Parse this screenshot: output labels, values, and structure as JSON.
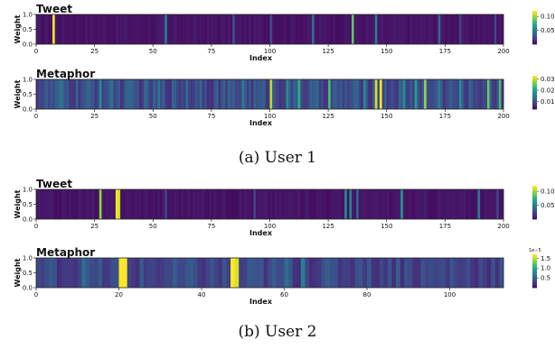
{
  "captions": [
    "(a) User 1",
    "(b) User 2"
  ],
  "colormap": "viridis",
  "colormap_stops": [
    "#440154",
    "#482878",
    "#3e4989",
    "#31688e",
    "#26828e",
    "#1f9e89",
    "#35b779",
    "#6ece58",
    "#b5de2b",
    "#fde725"
  ],
  "chart_data": [
    {
      "type": "heatmap",
      "title": "Tweet",
      "xlabel": "Index",
      "ylabel": "Weight",
      "xlim": [
        0,
        200
      ],
      "ylim": [
        0,
        1
      ],
      "xticks": [
        "0",
        "25",
        "50",
        "75",
        "100",
        "125",
        "150",
        "175",
        "200"
      ],
      "yticks": [
        "0.0",
        "0.5",
        "1.0"
      ],
      "colorbar": {
        "ticks": [
          "0.05",
          "0.10"
        ],
        "tick_values": [
          0.05,
          0.1
        ],
        "range": [
          0.0,
          0.12
        ],
        "offset_label": ""
      },
      "n": 200,
      "base": 0.004,
      "noise": 0.005,
      "highlights": [
        [
          7,
          0.12
        ],
        [
          55,
          0.05
        ],
        [
          84,
          0.03
        ],
        [
          100,
          0.028
        ],
        [
          118,
          0.045
        ],
        [
          135,
          0.09
        ],
        [
          145,
          0.05
        ],
        [
          172,
          0.04
        ],
        [
          181,
          0.025
        ],
        [
          196,
          0.028
        ]
      ]
    },
    {
      "type": "heatmap",
      "title": "Metaphor",
      "xlabel": "Index",
      "ylabel": "Weight",
      "xlim": [
        0,
        200
      ],
      "ylim": [
        0,
        1
      ],
      "xticks": [
        "0",
        "25",
        "50",
        "75",
        "100",
        "125",
        "150",
        "175",
        "200"
      ],
      "yticks": [
        "0.0",
        "0.5",
        "1.0"
      ],
      "colorbar": {
        "ticks": [
          "0.01",
          "0.02",
          "0.03"
        ],
        "tick_values": [
          0.01,
          0.02,
          0.03
        ],
        "range": [
          0.003,
          0.033
        ],
        "offset_label": ""
      },
      "n": 200,
      "base": 0.007,
      "noise": 0.006,
      "highlights": [
        [
          10,
          0.015
        ],
        [
          27,
          0.018
        ],
        [
          32,
          0.014
        ],
        [
          52,
          0.015
        ],
        [
          64,
          0.014
        ],
        [
          70,
          0.013
        ],
        [
          88,
          0.016
        ],
        [
          100,
          0.03
        ],
        [
          107,
          0.018
        ],
        [
          112,
          0.022
        ],
        [
          125,
          0.024
        ],
        [
          140,
          0.018
        ],
        [
          145,
          0.031
        ],
        [
          147,
          0.033
        ],
        [
          157,
          0.018
        ],
        [
          162,
          0.02
        ],
        [
          166,
          0.028
        ],
        [
          172,
          0.016
        ],
        [
          181,
          0.018
        ],
        [
          193,
          0.026
        ],
        [
          198,
          0.024
        ]
      ]
    },
    {
      "type": "heatmap",
      "title": "Tweet",
      "xlabel": "Index",
      "ylabel": "Weight",
      "xlim": [
        0,
        200
      ],
      "ylim": [
        0,
        1
      ],
      "xticks": [
        "0",
        "25",
        "50",
        "75",
        "100",
        "125",
        "150",
        "175",
        "200"
      ],
      "yticks": [
        "0.0",
        "0.5",
        "1.0"
      ],
      "colorbar": {
        "ticks": [
          "0.05",
          "0.10"
        ],
        "tick_values": [
          0.05,
          0.1
        ],
        "range": [
          0.0,
          0.12
        ],
        "offset_label": ""
      },
      "n": 200,
      "base": 0.004,
      "noise": 0.005,
      "highlights": [
        [
          27,
          0.1
        ],
        [
          34,
          0.12
        ],
        [
          35,
          0.11
        ],
        [
          55,
          0.025
        ],
        [
          93,
          0.025
        ],
        [
          132,
          0.06
        ],
        [
          134,
          0.055
        ],
        [
          137,
          0.04
        ],
        [
          156,
          0.065
        ],
        [
          189,
          0.05
        ],
        [
          197,
          0.025
        ]
      ]
    },
    {
      "type": "heatmap",
      "title": "Metaphor",
      "xlabel": "Index",
      "ylabel": "Weight",
      "xlim": [
        0,
        113
      ],
      "ylim": [
        0,
        1
      ],
      "xticks": [
        "0",
        "20",
        "40",
        "60",
        "80",
        "100"
      ],
      "yticks": [
        "0.0",
        "0.5",
        "1.0"
      ],
      "colorbar": {
        "ticks": [
          "0.5",
          "1.0",
          "1.5"
        ],
        "tick_values": [
          0.5,
          1.0,
          1.5
        ],
        "range": [
          0.0,
          1.7
        ],
        "offset_label": "1e−5"
      },
      "n": 113,
      "base": 0.2,
      "noise": 0.3,
      "highlights": [
        [
          11,
          0.6
        ],
        [
          20,
          1.7
        ],
        [
          21,
          1.7
        ],
        [
          47,
          1.7
        ],
        [
          48,
          1.6
        ],
        [
          57,
          0.5
        ],
        [
          60,
          0.6
        ],
        [
          64,
          0.75
        ],
        [
          78,
          0.45
        ],
        [
          87,
          0.5
        ],
        [
          100,
          0.45
        ]
      ]
    }
  ]
}
